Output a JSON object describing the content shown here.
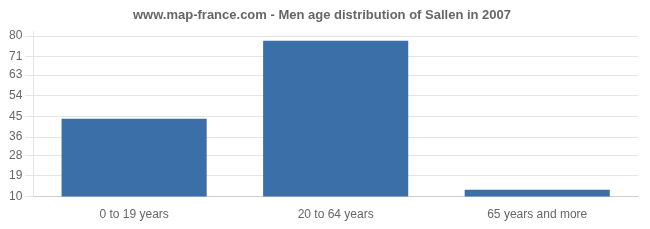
{
  "chart_data": {
    "type": "bar",
    "title": "www.map-france.com - Men age distribution of Sallen in 2007",
    "categories": [
      "0 to 19 years",
      "20 to 64 years",
      "65 years and more"
    ],
    "values": [
      44,
      78,
      13
    ],
    "color": "#3a6fa8",
    "ylim": [
      10,
      82
    ],
    "yticks": [
      10,
      19,
      28,
      36,
      45,
      54,
      63,
      71,
      80
    ],
    "grid": true
  }
}
